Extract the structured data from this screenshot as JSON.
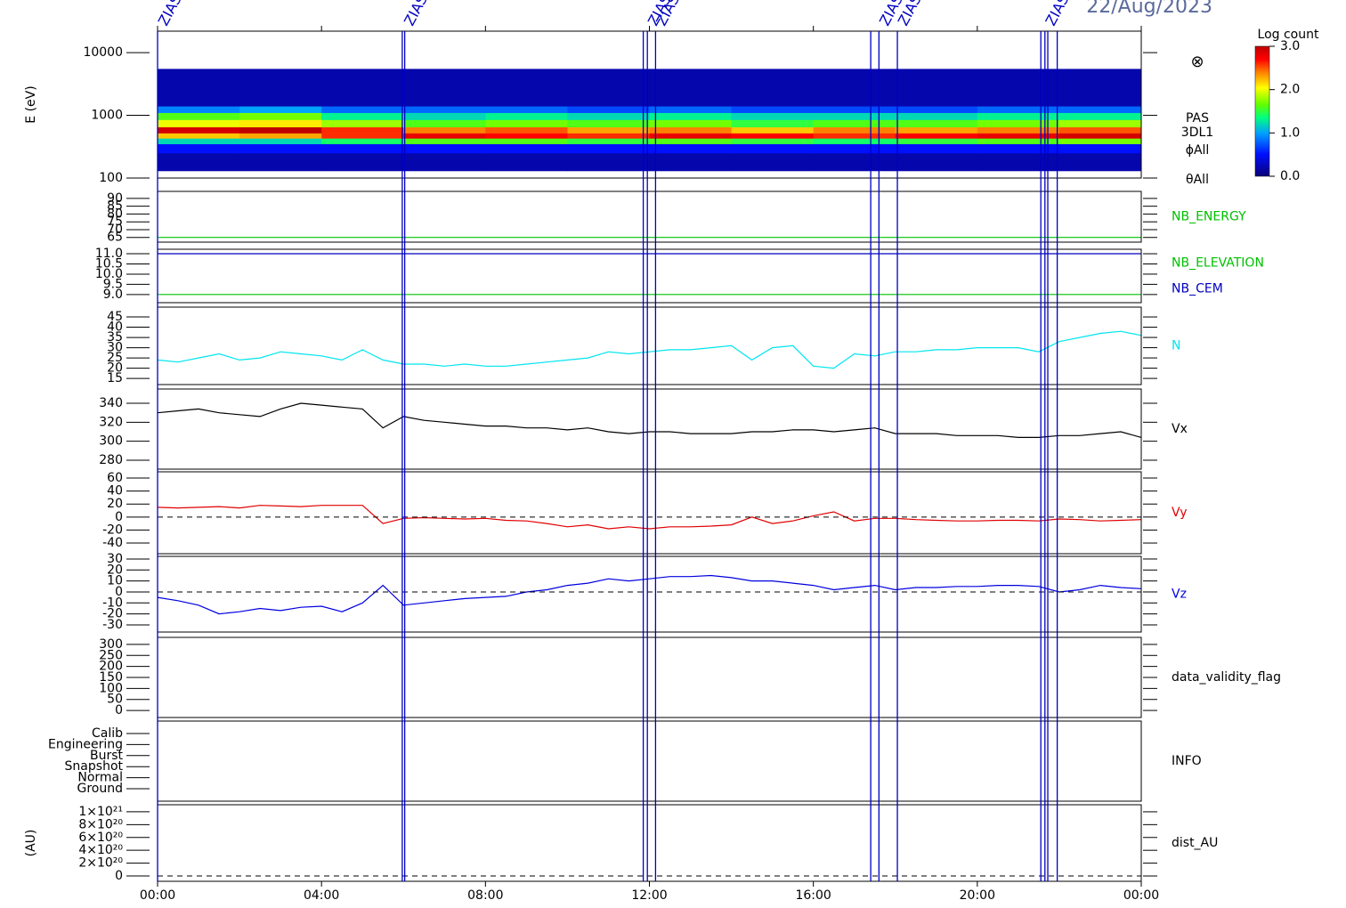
{
  "date": "22/Aug/2023",
  "time": {
    "xlim": [
      0,
      24
    ],
    "xticks": [
      {
        "value": 0,
        "label": "00:00"
      },
      {
        "value": 4,
        "label": "04:00"
      },
      {
        "value": 8,
        "label": "08:00"
      },
      {
        "value": 12,
        "label": "12:00"
      },
      {
        "value": 16,
        "label": "16:00"
      },
      {
        "value": 20,
        "label": "20:00"
      },
      {
        "value": 24,
        "label": "00:00"
      }
    ],
    "markers": [
      0,
      5.97,
      6.03,
      11.85,
      11.95,
      12.15,
      17.4,
      17.6,
      18.05,
      21.55,
      21.65,
      21.72,
      21.95
    ],
    "marker_labels": [
      {
        "x": 0,
        "label": "ZIAS"
      },
      {
        "x": 6.0,
        "label": "ZIAS"
      },
      {
        "x": 11.95,
        "label": "ZIAS"
      },
      {
        "x": 12.15,
        "label": "ZIAS"
      },
      {
        "x": 17.6,
        "label": "ZIAS"
      },
      {
        "x": 18.05,
        "label": "ZIAS"
      },
      {
        "x": 21.65,
        "label": "ZIAS"
      }
    ]
  },
  "chart_data": [
    {
      "type": "heatmap",
      "ylabel": "E (eV)",
      "ylog": true,
      "ylim": [
        100,
        22000
      ],
      "yticks": [
        100,
        1000,
        10000
      ],
      "x_bins": [
        0,
        2,
        4,
        6,
        8,
        10,
        12,
        14,
        16,
        18,
        20,
        22,
        24
      ],
      "y_bins": [
        130,
        250,
        350,
        430,
        520,
        650,
        850,
        1100,
        1400,
        5500
      ],
      "values": [
        [
          0.2,
          0.2,
          0.2,
          0.2,
          0.2,
          0.2,
          0.2,
          0.2,
          0.2,
          0.2,
          0.2,
          0.2
        ],
        [
          0.5,
          0.5,
          0.5,
          0.5,
          0.5,
          0.5,
          0.5,
          0.5,
          0.5,
          0.5,
          0.5,
          0.5
        ],
        [
          1.2,
          1.2,
          1.4,
          1.6,
          1.6,
          1.5,
          1.6,
          1.5,
          1.4,
          1.5,
          1.6,
          1.7
        ],
        [
          2.2,
          2.3,
          2.6,
          2.8,
          2.7,
          2.6,
          2.8,
          2.7,
          2.6,
          2.7,
          2.8,
          2.9
        ],
        [
          2.9,
          3.0,
          2.6,
          2.4,
          2.5,
          2.3,
          2.4,
          2.2,
          2.4,
          2.3,
          2.4,
          2.5
        ],
        [
          2.0,
          2.1,
          1.8,
          1.6,
          1.7,
          1.6,
          1.7,
          1.5,
          1.6,
          1.6,
          1.7,
          1.8
        ],
        [
          1.6,
          1.7,
          1.3,
          1.2,
          1.3,
          1.2,
          1.3,
          1.2,
          1.2,
          1.2,
          1.3,
          1.3
        ],
        [
          0.9,
          1.0,
          0.8,
          0.8,
          0.8,
          0.7,
          0.8,
          0.7,
          0.7,
          0.7,
          0.8,
          0.8
        ],
        [
          0.2,
          0.2,
          0.2,
          0.2,
          0.2,
          0.2,
          0.2,
          0.2,
          0.2,
          0.2,
          0.2,
          0.2
        ]
      ],
      "colorbar": {
        "title": "Log count",
        "lim": [
          0,
          3
        ],
        "ticks": [
          {
            "value": 0,
            "label": "0.0"
          },
          {
            "value": 1,
            "label": "1.0"
          },
          {
            "value": 2,
            "label": "2.0"
          },
          {
            "value": 3,
            "label": "3.0"
          }
        ]
      },
      "labels": [
        "PAS",
        "3DL1",
        "ϕAll",
        "θAll"
      ],
      "symbol": "⊗"
    },
    {
      "type": "line",
      "ylim": [
        62,
        94.5
      ],
      "yticks": [
        65,
        70,
        75,
        80,
        85,
        90
      ],
      "x": [
        0,
        24
      ],
      "series": [
        {
          "name": "NB_ENERGY",
          "color": "#00c000",
          "values": [
            65,
            65
          ]
        }
      ]
    },
    {
      "type": "line",
      "ylim": [
        8.6,
        11.22
      ],
      "yticks": [
        {
          "value": 9,
          "label": "9.0"
        },
        {
          "value": 9.5,
          "label": "9.5"
        },
        {
          "value": 10,
          "label": "10.0"
        },
        {
          "value": 10.5,
          "label": "10.5"
        },
        {
          "value": 11,
          "label": "11.0"
        }
      ],
      "x": [
        0,
        24
      ],
      "series": [
        {
          "name": "NB_ELEVATION",
          "color": "#00c000",
          "values": [
            9,
            9
          ]
        },
        {
          "name": "NB_CEM",
          "color": "#0000c0",
          "values": [
            11,
            11
          ]
        }
      ]
    },
    {
      "type": "line",
      "ylim": [
        12,
        49.8
      ],
      "yticks": [
        15,
        20,
        25,
        30,
        35,
        40,
        45
      ],
      "x": [
        0,
        0.5,
        1,
        1.5,
        2,
        2.5,
        3,
        3.5,
        4,
        4.5,
        5,
        5.5,
        6,
        6.5,
        7,
        7.5,
        8,
        8.5,
        9,
        9.5,
        10,
        10.5,
        11,
        11.5,
        12,
        12.5,
        13,
        13.5,
        14,
        14.5,
        15,
        15.5,
        16,
        16.5,
        17,
        17.5,
        18,
        18.5,
        19,
        19.5,
        20,
        20.5,
        21,
        21.5,
        22,
        22.5,
        23,
        23.5,
        24
      ],
      "series": [
        {
          "name": "N",
          "color": "#00e5ee",
          "values": [
            24,
            23,
            25,
            27,
            24,
            25,
            28,
            27,
            26,
            24,
            29,
            24,
            22,
            22,
            21,
            22,
            21,
            21,
            22,
            23,
            24,
            25,
            28,
            27,
            28,
            29,
            29,
            30,
            31,
            24,
            30,
            31,
            21,
            20,
            27,
            26,
            28,
            28,
            29,
            29,
            30,
            30,
            30,
            28,
            33,
            35,
            37,
            38,
            36
          ]
        }
      ]
    },
    {
      "type": "line",
      "ylim": [
        270.6,
        355
      ],
      "yticks": [
        280,
        300,
        320,
        340
      ],
      "x": [
        0,
        0.5,
        1,
        1.5,
        2,
        2.5,
        3,
        3.5,
        4,
        4.5,
        5,
        5.5,
        6,
        6.5,
        7,
        7.5,
        8,
        8.5,
        9,
        9.5,
        10,
        10.5,
        11,
        11.5,
        12,
        12.5,
        13,
        13.5,
        14,
        14.5,
        15,
        15.5,
        16,
        16.5,
        17,
        17.5,
        18,
        18.5,
        19,
        19.5,
        20,
        20.5,
        21,
        21.5,
        22,
        22.5,
        23,
        23.5,
        24
      ],
      "series": [
        {
          "name": "Vx",
          "color": "#000000",
          "values": [
            330,
            332,
            334,
            330,
            328,
            326,
            334,
            340,
            338,
            336,
            334,
            314,
            326,
            322,
            320,
            318,
            316,
            316,
            314,
            314,
            312,
            314,
            310,
            308,
            310,
            310,
            308,
            308,
            308,
            310,
            310,
            312,
            312,
            310,
            312,
            314,
            308,
            308,
            308,
            306,
            306,
            306,
            304,
            304,
            306,
            306,
            308,
            310,
            304
          ]
        }
      ]
    },
    {
      "type": "line",
      "ylim": [
        -56.4,
        69.6
      ],
      "yticks": [
        -40,
        -20,
        0,
        20,
        40,
        60
      ],
      "zero_line": true,
      "x": [
        0,
        0.5,
        1,
        1.5,
        2,
        2.5,
        3,
        3.5,
        4,
        4.5,
        5,
        5.5,
        6,
        6.5,
        7,
        7.5,
        8,
        8.5,
        9,
        9.5,
        10,
        10.5,
        11,
        11.5,
        12,
        12.5,
        13,
        13.5,
        14,
        14.5,
        15,
        15.5,
        16,
        16.5,
        17,
        17.5,
        18,
        18.5,
        19,
        19.5,
        20,
        20.5,
        21,
        21.5,
        22,
        22.5,
        23,
        23.5,
        24
      ],
      "series": [
        {
          "name": "Vy",
          "color": "#e00000",
          "values": [
            15,
            14,
            15,
            16,
            14,
            18,
            17,
            16,
            18,
            18,
            18,
            -10,
            -2,
            -1,
            -2,
            -3,
            -2,
            -5,
            -6,
            -10,
            -15,
            -12,
            -18,
            -15,
            -18,
            -15,
            -15,
            -14,
            -12,
            0,
            -10,
            -6,
            2,
            8,
            -6,
            -2,
            -2,
            -4,
            -5,
            -6,
            -6,
            -5,
            -5,
            -6,
            -3,
            -4,
            -6,
            -5,
            -4
          ]
        }
      ]
    },
    {
      "type": "line",
      "ylim": [
        -36.5,
        32.4
      ],
      "yticks": [
        -30,
        -20,
        -10,
        0,
        10,
        20,
        30
      ],
      "zero_line": true,
      "x": [
        0,
        0.5,
        1,
        1.5,
        2,
        2.5,
        3,
        3.5,
        4,
        4.5,
        5,
        5.5,
        6,
        6.5,
        7,
        7.5,
        8,
        8.5,
        9,
        9.5,
        10,
        10.5,
        11,
        11.5,
        12,
        12.5,
        13,
        13.5,
        14,
        14.5,
        15,
        15.5,
        16,
        16.5,
        17,
        17.5,
        18,
        18.5,
        19,
        19.5,
        20,
        20.5,
        21,
        21.5,
        22,
        22.5,
        23,
        23.5,
        24
      ],
      "series": [
        {
          "name": "Vz",
          "color": "#0000e0",
          "values": [
            -5,
            -8,
            -12,
            -20,
            -18,
            -15,
            -17,
            -14,
            -13,
            -18,
            -10,
            6,
            -12,
            -10,
            -8,
            -6,
            -5,
            -4,
            0,
            2,
            6,
            8,
            12,
            10,
            12,
            14,
            14,
            15,
            13,
            10,
            10,
            8,
            6,
            2,
            4,
            6,
            2,
            4,
            4,
            5,
            5,
            6,
            6,
            5,
            0,
            2,
            6,
            4,
            3
          ]
        }
      ]
    },
    {
      "type": "empty",
      "label": "data_validity_flag",
      "ylim": [
        -32,
        332
      ],
      "yticks": [
        0,
        50,
        100,
        150,
        200,
        250,
        300
      ]
    },
    {
      "type": "category",
      "label": "INFO",
      "categories": [
        "Calib",
        "Engineering",
        "Burst",
        "Snapshot",
        "Normal",
        "Ground"
      ]
    },
    {
      "type": "empty",
      "label": "dist_AU",
      "ylabel": "(AU)",
      "ylim": [
        -8.3e+19,
        1.11e+21
      ],
      "zero_line": true,
      "yticks": [
        0,
        {
          "value": 2e+20,
          "label": "2×10²⁰"
        },
        {
          "value": 4e+20,
          "label": "4×10²⁰"
        },
        {
          "value": 6e+20,
          "label": "6×10²⁰"
        },
        {
          "value": 8e+20,
          "label": "8×10²⁰"
        },
        {
          "value": 1e+21,
          "label": "1×10²¹"
        }
      ]
    }
  ]
}
